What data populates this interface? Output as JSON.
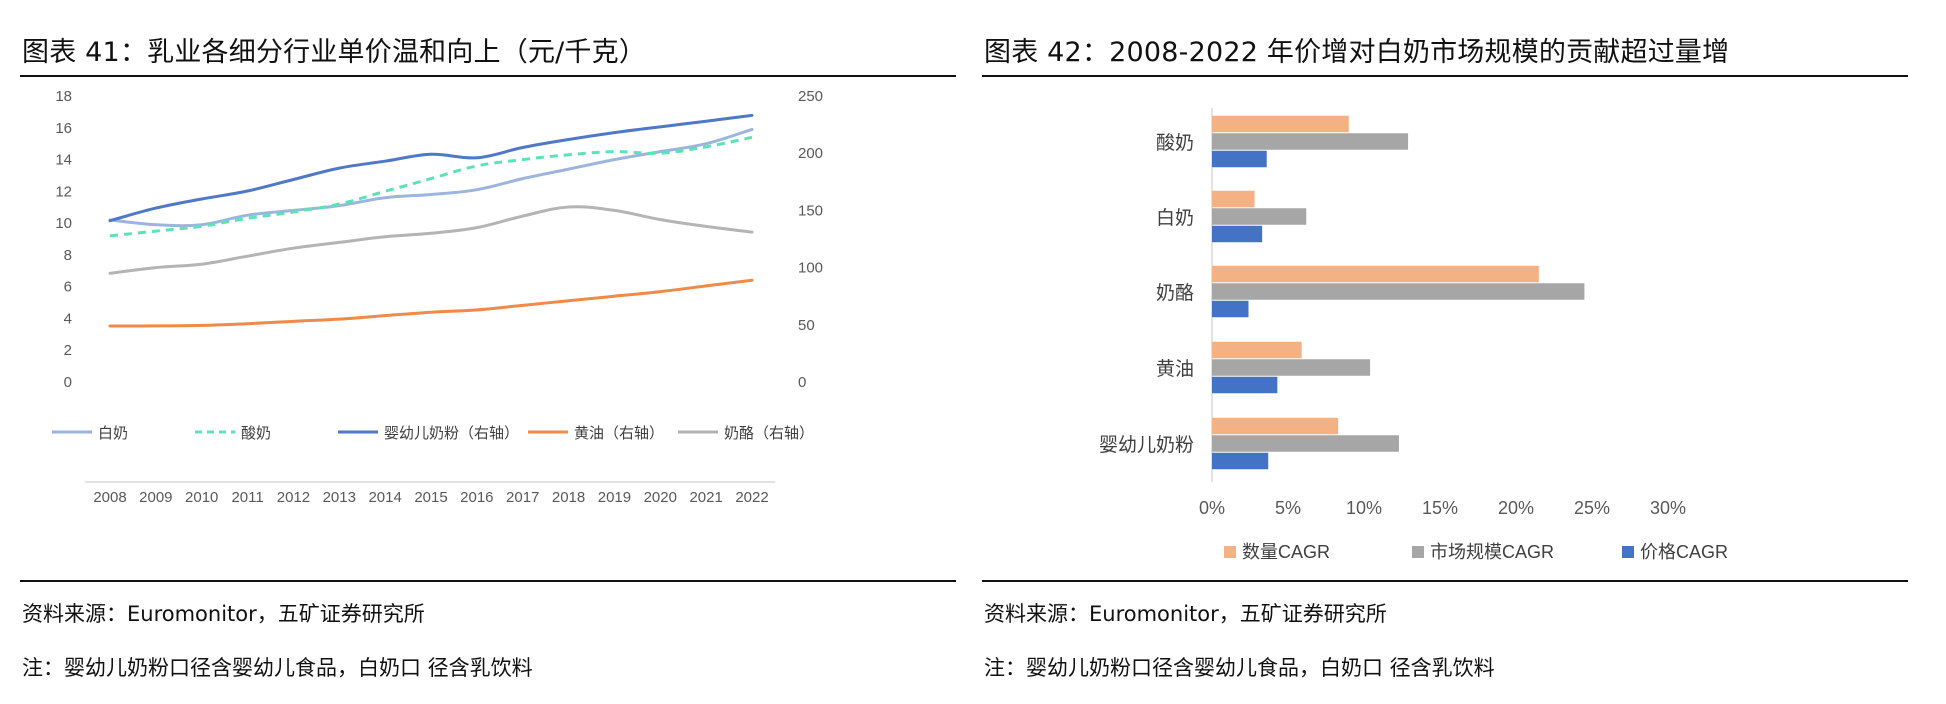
{
  "left": {
    "title": "图表 41：乳业各细分行业单价温和向上（元/千克）",
    "source": "资料来源：Euromonitor，五矿证券研究所",
    "note": "注：婴幼儿奶粉口径含婴幼儿食品，白奶口 径含乳饮料"
  },
  "right": {
    "title": "图表 42：2008-2022 年价增对白奶市场规模的贡献超过量增",
    "source": "资料来源：Euromonitor，五矿证券研究所",
    "note": "注：婴幼儿奶粉口径含婴幼儿食品，白奶口 径含乳饮料"
  },
  "colors": {
    "white_milk": "#9bb5de",
    "yogurt": "#5ce3b5",
    "infant": "#4f78c8",
    "butter": "#ef8a48",
    "cheese": "#b4b4b4",
    "qty": "#f4b184",
    "market": "#a6a6a6",
    "price": "#4472c4"
  },
  "chart_data": [
    {
      "type": "line",
      "x": [
        "2008",
        "2009",
        "2010",
        "2011",
        "2012",
        "2013",
        "2014",
        "2015",
        "2016",
        "2017",
        "2018",
        "2019",
        "2020",
        "2021",
        "2022"
      ],
      "y_left": {
        "range": [
          0,
          18
        ],
        "ticks": [
          "0",
          "2",
          "4",
          "6",
          "8",
          "10",
          "12",
          "14",
          "16",
          "18"
        ]
      },
      "y_right": {
        "range": [
          0,
          250
        ],
        "ticks": [
          "0",
          "50",
          "100",
          "150",
          "200",
          "250"
        ]
      },
      "series": [
        {
          "name": "白奶",
          "axis": "left",
          "style": "solid",
          "color_key": "white_milk",
          "values": [
            10.2,
            9.9,
            9.9,
            10.5,
            10.8,
            11.1,
            11.6,
            11.8,
            12.1,
            12.8,
            13.4,
            14.0,
            14.5,
            15.0,
            15.9
          ]
        },
        {
          "name": "酸奶",
          "axis": "left",
          "style": "dashed",
          "color_key": "yogurt",
          "values": [
            9.2,
            9.5,
            9.8,
            10.3,
            10.7,
            11.2,
            12.0,
            12.8,
            13.6,
            14.0,
            14.3,
            14.5,
            14.4,
            14.8,
            15.4
          ]
        },
        {
          "name": "婴幼儿奶粉（右轴）",
          "axis": "right",
          "style": "solid",
          "color_key": "infant",
          "values": [
            141,
            152,
            160,
            167,
            177,
            187,
            193,
            199,
            196,
            205,
            212,
            218,
            223,
            228,
            233
          ]
        },
        {
          "name": "黄油（右轴）",
          "axis": "right",
          "style": "solid",
          "color_key": "butter",
          "values": [
            49,
            49,
            49.5,
            51,
            53,
            55,
            58,
            61,
            63,
            67,
            71,
            75,
            79,
            84,
            89
          ]
        },
        {
          "name": "奶酪（右轴）",
          "axis": "right",
          "style": "solid",
          "color_key": "cheese",
          "values": [
            95,
            100,
            103,
            110,
            117,
            122,
            127,
            130,
            135,
            145,
            153,
            150,
            142,
            136,
            131
          ]
        }
      ]
    },
    {
      "type": "bar",
      "orientation": "horizontal",
      "categories": [
        "酸奶",
        "白奶",
        "奶酪",
        "黄油",
        "婴幼儿奶粉"
      ],
      "x_range": [
        0,
        30
      ],
      "x_ticks": [
        "0%",
        "5%",
        "10%",
        "15%",
        "20%",
        "25%",
        "30%"
      ],
      "series": [
        {
          "name": "数量CAGR",
          "color_key": "qty",
          "values": [
            9.0,
            2.8,
            21.5,
            5.9,
            8.3
          ]
        },
        {
          "name": "市场规模CAGR",
          "color_key": "market",
          "values": [
            12.9,
            6.2,
            24.5,
            10.4,
            12.3
          ]
        },
        {
          "name": "价格CAGR",
          "color_key": "price",
          "values": [
            3.6,
            3.3,
            2.4,
            4.3,
            3.7
          ]
        }
      ]
    }
  ]
}
